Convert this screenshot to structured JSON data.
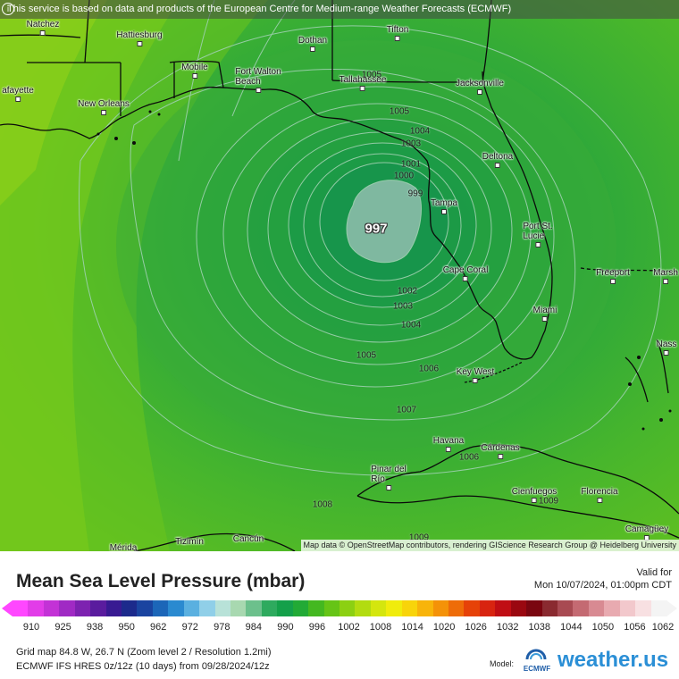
{
  "notice": "This service is based on data and products of the European Centre for Medium-range Weather Forecasts (ECMWF)",
  "attribution": "Map data © OpenStreetMap contributors, rendering GIScience Research Group @ Heidelberg University",
  "places": {
    "natchez": "Natchez",
    "hattiesburg": "Hattiesburg",
    "dothan": "Dothan",
    "tifton": "Tifton",
    "lafayette": "afayette",
    "mobile": "Mobile",
    "fort_walton_1": "Fort Walton",
    "fort_walton_2": "Beach",
    "tallahassee": "Tallahassee",
    "jacksonville": "Jacksonville",
    "new_orleans": "New Orleans",
    "deltona": "Deltona",
    "tampa": "Tampa",
    "port_st_lucie_1": "Port St.",
    "port_st_lucie_2": "Lucie",
    "cape_coral": "Cape Coral",
    "freeport": "Freeport",
    "marsh": "Marsh",
    "miami": "Miami",
    "nassau": "Nass",
    "key_west": "Key West",
    "havana": "Havana",
    "cardenas": "Cárdenas",
    "pinar_1": "Pinar del",
    "pinar_2": "Río",
    "cienfuegos": "Cienfuegos",
    "florencia": "Florencia",
    "camaguey": "Camagüey",
    "tizimin": "Tizimín",
    "cancun": "Cancún",
    "merida": "Mérida"
  },
  "isobars": {
    "l997": "997",
    "l999": "999",
    "l1000": "1000",
    "l1001": "1001",
    "l1002": "1002",
    "l1003a": "1003",
    "l1003b": "1003",
    "l1004a": "1004",
    "l1004b": "1004",
    "l1005a": "1005",
    "l1005b": "1005",
    "l1006a": "1006",
    "l1006b": "1006",
    "l1007": "1007",
    "l1008": "1008",
    "l1009a": "1009",
    "l1009b": "1009",
    "l1005c": "1005"
  },
  "legend": {
    "title": "Mean Sea Level Pressure (mbar)",
    "valid_label": "Valid for",
    "valid_time": "Mon 10/07/2024, 01:00pm CDT",
    "ticks": [
      "910",
      "925",
      "938",
      "950",
      "962",
      "972",
      "978",
      "984",
      "990",
      "996",
      "1002",
      "1008",
      "1014",
      "1020",
      "1026",
      "1032",
      "1038",
      "1044",
      "1050",
      "1056",
      "1062"
    ],
    "colors": [
      "#ff47ff",
      "#e23ce8",
      "#c332d6",
      "#a02ac4",
      "#7d22b0",
      "#5a1c9e",
      "#381a92",
      "#1c2a8c",
      "#1a44a0",
      "#1c66b8",
      "#2a8ad0",
      "#5ab0e0",
      "#90cfe8",
      "#b8e2d8",
      "#a8d8b0",
      "#6cc08c",
      "#2eaa5e",
      "#14a04a",
      "#22aa36",
      "#44b820",
      "#66c416",
      "#8cd012",
      "#b2dc10",
      "#d4e60e",
      "#f0ec0c",
      "#f8d40a",
      "#f8b40a",
      "#f49208",
      "#ee6c08",
      "#e64208",
      "#d82410",
      "#c00e14",
      "#9a0810",
      "#7a0610",
      "#8a2a30",
      "#a84a52",
      "#c46a72",
      "#d88a92",
      "#e8aab0",
      "#f2c8cc",
      "#f8e0e2",
      "#f4f4f4"
    ],
    "grid_info": "Grid map 84.8 W, 26.7 N (Zoom level 2 / Resolution 1.2mi)",
    "run_info": "ECMWF IFS HRES 0z/12z (10 days) from 09/28/2024/12z",
    "model_label": "Model:",
    "ecmwf_logo": "ECMWF",
    "brand": "weather.us"
  }
}
